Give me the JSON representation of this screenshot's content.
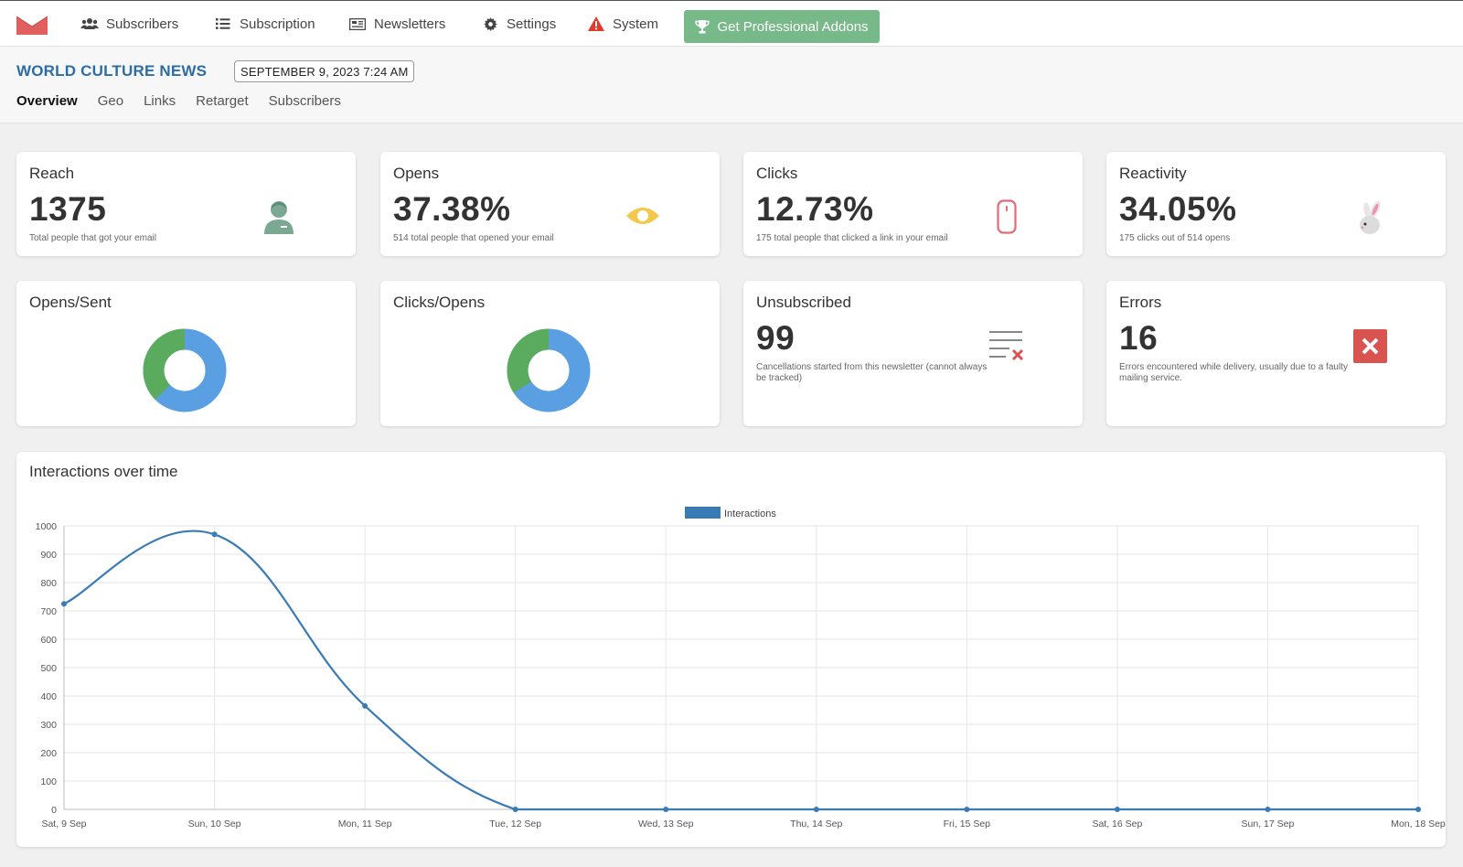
{
  "nav": {
    "items": [
      {
        "label": "Subscribers",
        "icon": "users-icon"
      },
      {
        "label": "Subscription",
        "icon": "list-icon"
      },
      {
        "label": "Newsletters",
        "icon": "newspaper-icon"
      },
      {
        "label": "Settings",
        "icon": "gear-icon"
      },
      {
        "label": "System",
        "icon": "warning-icon"
      }
    ],
    "pro_label": "Get Professional Addons"
  },
  "header": {
    "title": "WORLD CULTURE NEWS",
    "date": "SEPTEMBER 9, 2023 7:24 AM",
    "tabs": [
      "Overview",
      "Geo",
      "Links",
      "Retarget",
      "Subscribers"
    ],
    "active_tab": "Overview"
  },
  "cards": {
    "reach": {
      "title": "Reach",
      "value": "1375",
      "desc": "Total people that got your email",
      "icon": "person-icon"
    },
    "opens": {
      "title": "Opens",
      "value": "37.38%",
      "desc": "514 total people that opened your email",
      "icon": "eye-icon"
    },
    "clicks": {
      "title": "Clicks",
      "value": "12.73%",
      "desc": "175 total people that clicked a link in your email",
      "icon": "mouse-icon"
    },
    "reactivity": {
      "title": "Reactivity",
      "value": "34.05%",
      "desc": "175 clicks out of 514 opens",
      "icon": "rabbit-icon"
    },
    "opens_sent": {
      "title": "Opens/Sent",
      "fraction": 0.3738
    },
    "clicks_opens": {
      "title": "Clicks/Opens",
      "fraction": 0.3405
    },
    "unsubscribed": {
      "title": "Unsubscribed",
      "value": "99",
      "desc": "Cancellations started from this newsletter (cannot always be tracked)",
      "icon": "list-remove-icon"
    },
    "errors": {
      "title": "Errors",
      "value": "16",
      "desc": "Errors encountered while delivery, usually due to a faulty mailing service.",
      "icon": "error-x-icon"
    }
  },
  "colors": {
    "accent_blue": "#2e6da4",
    "line_blue": "#3a7bb6",
    "donut_green": "#5aab5e",
    "donut_blue": "#5b9fe3",
    "pro_green": "#78b98a",
    "error_red": "#d9534f"
  },
  "chart_data": {
    "type": "line",
    "title": "Interactions over time",
    "categories": [
      "Sat,  9 Sep",
      "Sun, 10 Sep",
      "Mon, 11 Sep",
      "Tue, 12 Sep",
      "Wed, 13 Sep",
      "Thu, 14 Sep",
      "Fri, 15 Sep",
      "Sat, 16 Sep",
      "Sun, 17 Sep",
      "Mon, 18 Sep"
    ],
    "series": [
      {
        "name": "Interactions",
        "values": [
          725,
          970,
          365,
          0,
          0,
          0,
          0,
          0,
          0,
          0
        ]
      }
    ],
    "ylim": [
      0,
      1000
    ],
    "yticks": [
      0,
      100,
      200,
      300,
      400,
      500,
      600,
      700,
      800,
      900,
      1000
    ],
    "grid": true,
    "legend": "top-center"
  }
}
